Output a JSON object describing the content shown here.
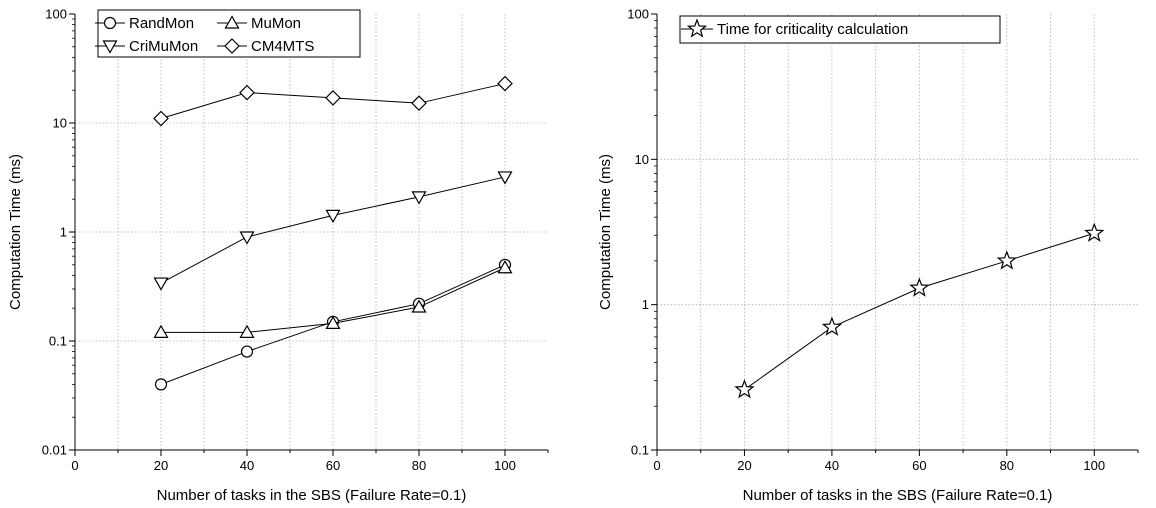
{
  "chart_data": [
    {
      "type": "line",
      "xlabel": "Number of tasks in the SBS (Failure Rate=0.1)",
      "ylabel": "Computation Time (ms)",
      "y_scale": "log",
      "xlim": [
        0,
        110
      ],
      "ylim": [
        0.01,
        100
      ],
      "x_ticks": [
        0,
        20,
        40,
        60,
        80,
        100
      ],
      "x_tick_labels": [
        "0",
        "20",
        "40",
        "60",
        "80",
        "100"
      ],
      "y_ticks": [
        0.01,
        0.1,
        1,
        10,
        100
      ],
      "y_tick_labels": [
        "0.01",
        "0.1",
        "1",
        "10",
        "100"
      ],
      "grid": true,
      "legend_position": "top-left",
      "x": [
        20,
        40,
        60,
        80,
        100
      ],
      "series": [
        {
          "name": "RandMon",
          "marker": "circle",
          "values": [
            0.04,
            0.08,
            0.15,
            0.22,
            0.5
          ]
        },
        {
          "name": "MuMon",
          "marker": "triangle-up",
          "values": [
            0.12,
            0.12,
            0.145,
            0.205,
            0.47
          ]
        },
        {
          "name": "CriMuMon",
          "marker": "triangle-down",
          "values": [
            0.34,
            0.9,
            1.42,
            2.1,
            3.2
          ]
        },
        {
          "name": "CM4MTS",
          "marker": "diamond",
          "values": [
            11,
            19,
            17,
            15.2,
            23
          ]
        }
      ]
    },
    {
      "type": "line",
      "xlabel": "Number of tasks in the SBS (Failure Rate=0.1)",
      "ylabel": "Computation Time (ms)",
      "y_scale": "log",
      "xlim": [
        0,
        110
      ],
      "ylim": [
        0.1,
        100
      ],
      "x_ticks": [
        0,
        20,
        40,
        60,
        80,
        100
      ],
      "x_tick_labels": [
        "0",
        "20",
        "40",
        "60",
        "80",
        "100"
      ],
      "y_ticks": [
        0.1,
        1,
        10,
        100
      ],
      "y_tick_labels": [
        "0.1",
        "1",
        "10",
        "100"
      ],
      "grid": true,
      "legend_position": "top-left",
      "x": [
        20,
        40,
        60,
        80,
        100
      ],
      "series": [
        {
          "name": "Time for criticality calculation",
          "marker": "star",
          "values": [
            0.26,
            0.7,
            1.3,
            2.0,
            3.1
          ]
        }
      ]
    }
  ]
}
